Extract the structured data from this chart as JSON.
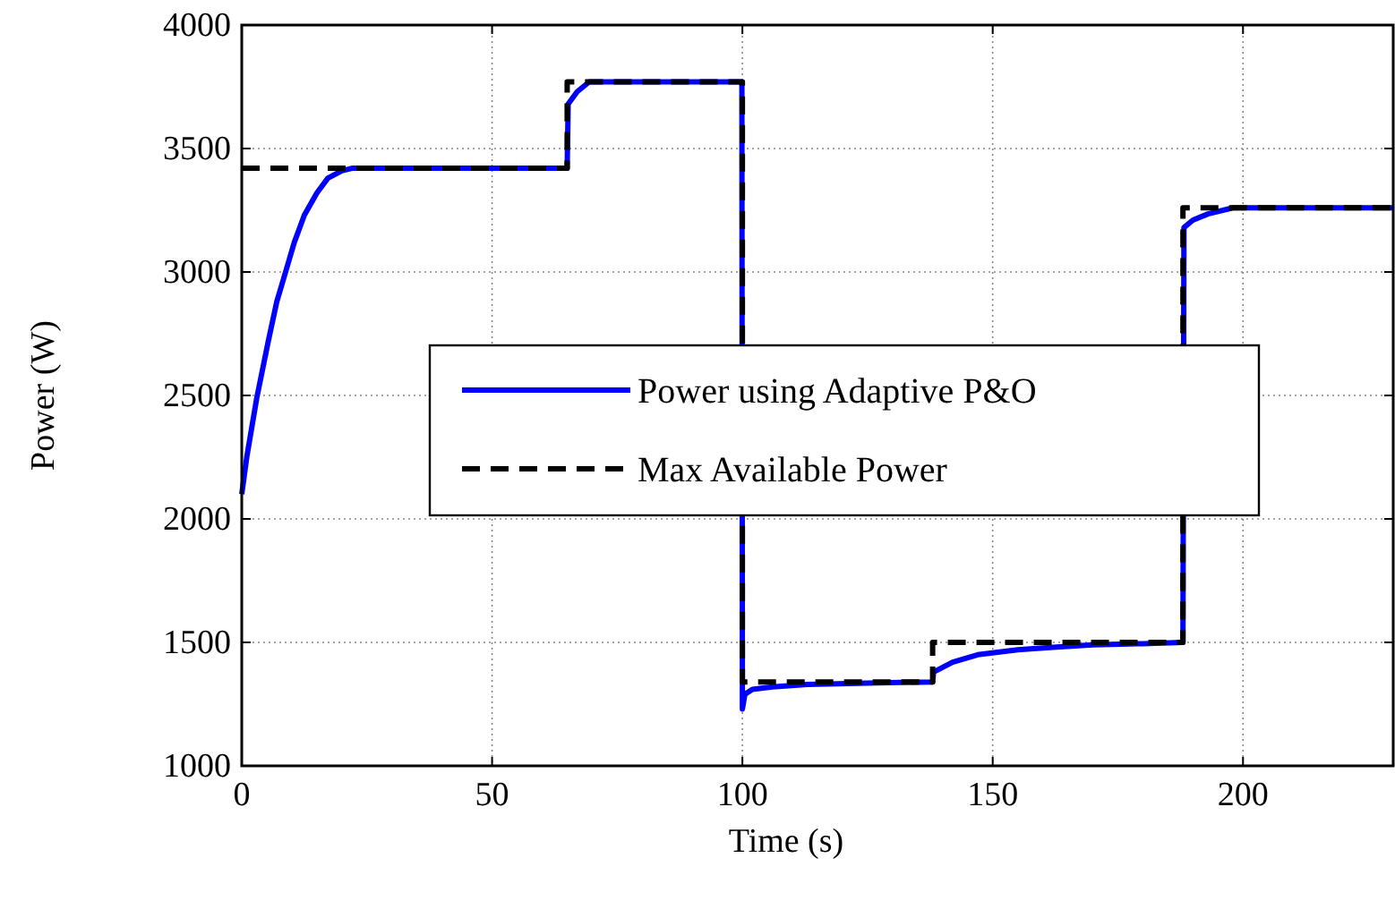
{
  "chart_data": {
    "type": "line",
    "xlabel": "Time (s)",
    "ylabel": "Power (W)",
    "xlim": [
      0,
      230
    ],
    "ylim": [
      1000,
      4000
    ],
    "xticks": [
      0,
      50,
      100,
      150,
      200
    ],
    "yticks": [
      1000,
      1500,
      2000,
      2500,
      3000,
      3500,
      4000
    ],
    "grid": true,
    "legend": "center",
    "marker": "none",
    "series": [
      {
        "name": "Power using Adaptive P&O",
        "color": "#0000ff",
        "line_style": "solid",
        "x": [
          0,
          1,
          3,
          5.3,
          7,
          8.9,
          10.5,
          12.5,
          15,
          17.2,
          20,
          22,
          40,
          65,
          65.2,
          67,
          69.4,
          80,
          99.9,
          100,
          100.5,
          102,
          106,
          113,
          125,
          138,
          138.2,
          142,
          147,
          155,
          162,
          170,
          180,
          188,
          188.2,
          190,
          193,
          198,
          210,
          230
        ],
        "values": [
          2100,
          2250,
          2490,
          2720,
          2880,
          3010,
          3120,
          3230,
          3320,
          3380,
          3410,
          3420,
          3420,
          3420,
          3680,
          3730,
          3770,
          3770,
          3770,
          1230,
          1290,
          1310,
          1320,
          1330,
          1335,
          1340,
          1380,
          1420,
          1450,
          1470,
          1480,
          1490,
          1495,
          1500,
          3180,
          3210,
          3235,
          3260,
          3260,
          3260
        ]
      },
      {
        "name": "Max Available Power",
        "color": "#000000",
        "line_style": "dashed",
        "x": [
          0,
          65,
          65,
          100,
          100,
          138,
          138,
          188,
          188,
          230
        ],
        "values": [
          3420,
          3420,
          3770,
          3770,
          1340,
          1340,
          1500,
          1500,
          3260,
          3260
        ]
      }
    ]
  }
}
